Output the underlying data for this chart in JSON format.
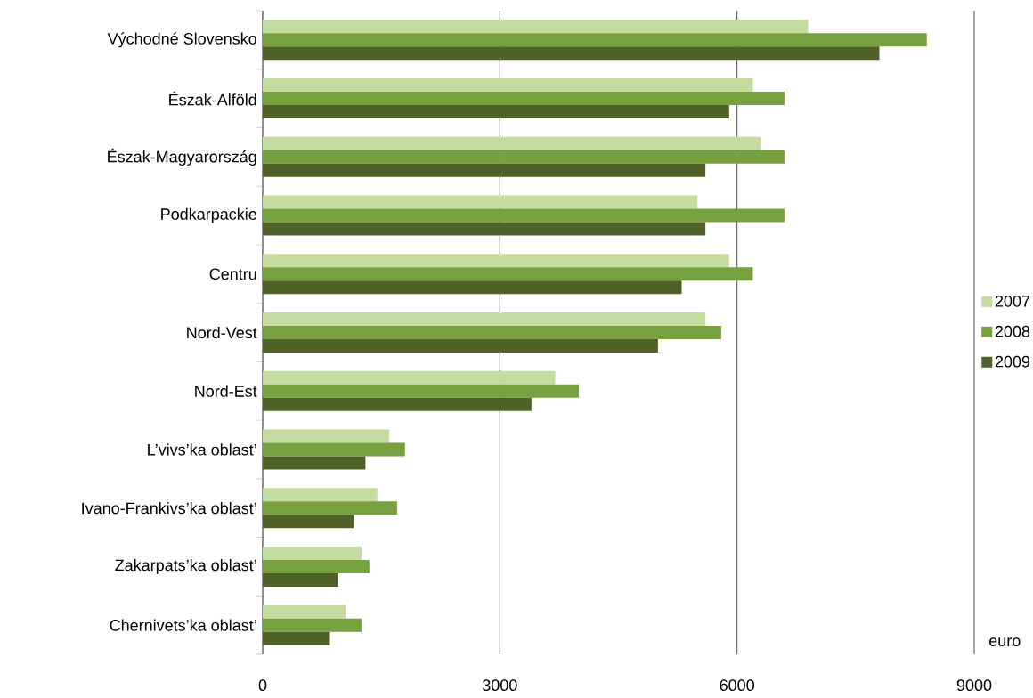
{
  "chart_data": {
    "type": "bar",
    "orientation": "horizontal",
    "xlabel": "euro",
    "categories": [
      "Východné Slovensko",
      "Észak-Alföld",
      "Észak-Magyarország",
      "Podkarpackie",
      "Centru",
      "Nord-Vest",
      "Nord-Est",
      "L’vivs’ka oblast’",
      "Ivano-Frankivs’ka oblast’",
      "Zakarpats’ka oblast’",
      "Chernivets’ka oblast’"
    ],
    "series": [
      {
        "name": "2007",
        "color": "#c4dca0",
        "values": [
          6900,
          6200,
          6300,
          5500,
          5900,
          5600,
          3700,
          1600,
          1450,
          1250,
          1050
        ]
      },
      {
        "name": "2008",
        "color": "#77a03f",
        "values": [
          8400,
          6600,
          6600,
          6600,
          6200,
          5800,
          4000,
          1800,
          1700,
          1350,
          1250
        ]
      },
      {
        "name": "2009",
        "color": "#4f6228",
        "values": [
          7800,
          5900,
          5600,
          5600,
          5300,
          5000,
          3400,
          1300,
          1150,
          950,
          850
        ]
      }
    ],
    "xlim": [
      0,
      9000
    ],
    "xticks": [
      0,
      3000,
      6000,
      9000
    ],
    "grid": "x",
    "legend": "right"
  }
}
